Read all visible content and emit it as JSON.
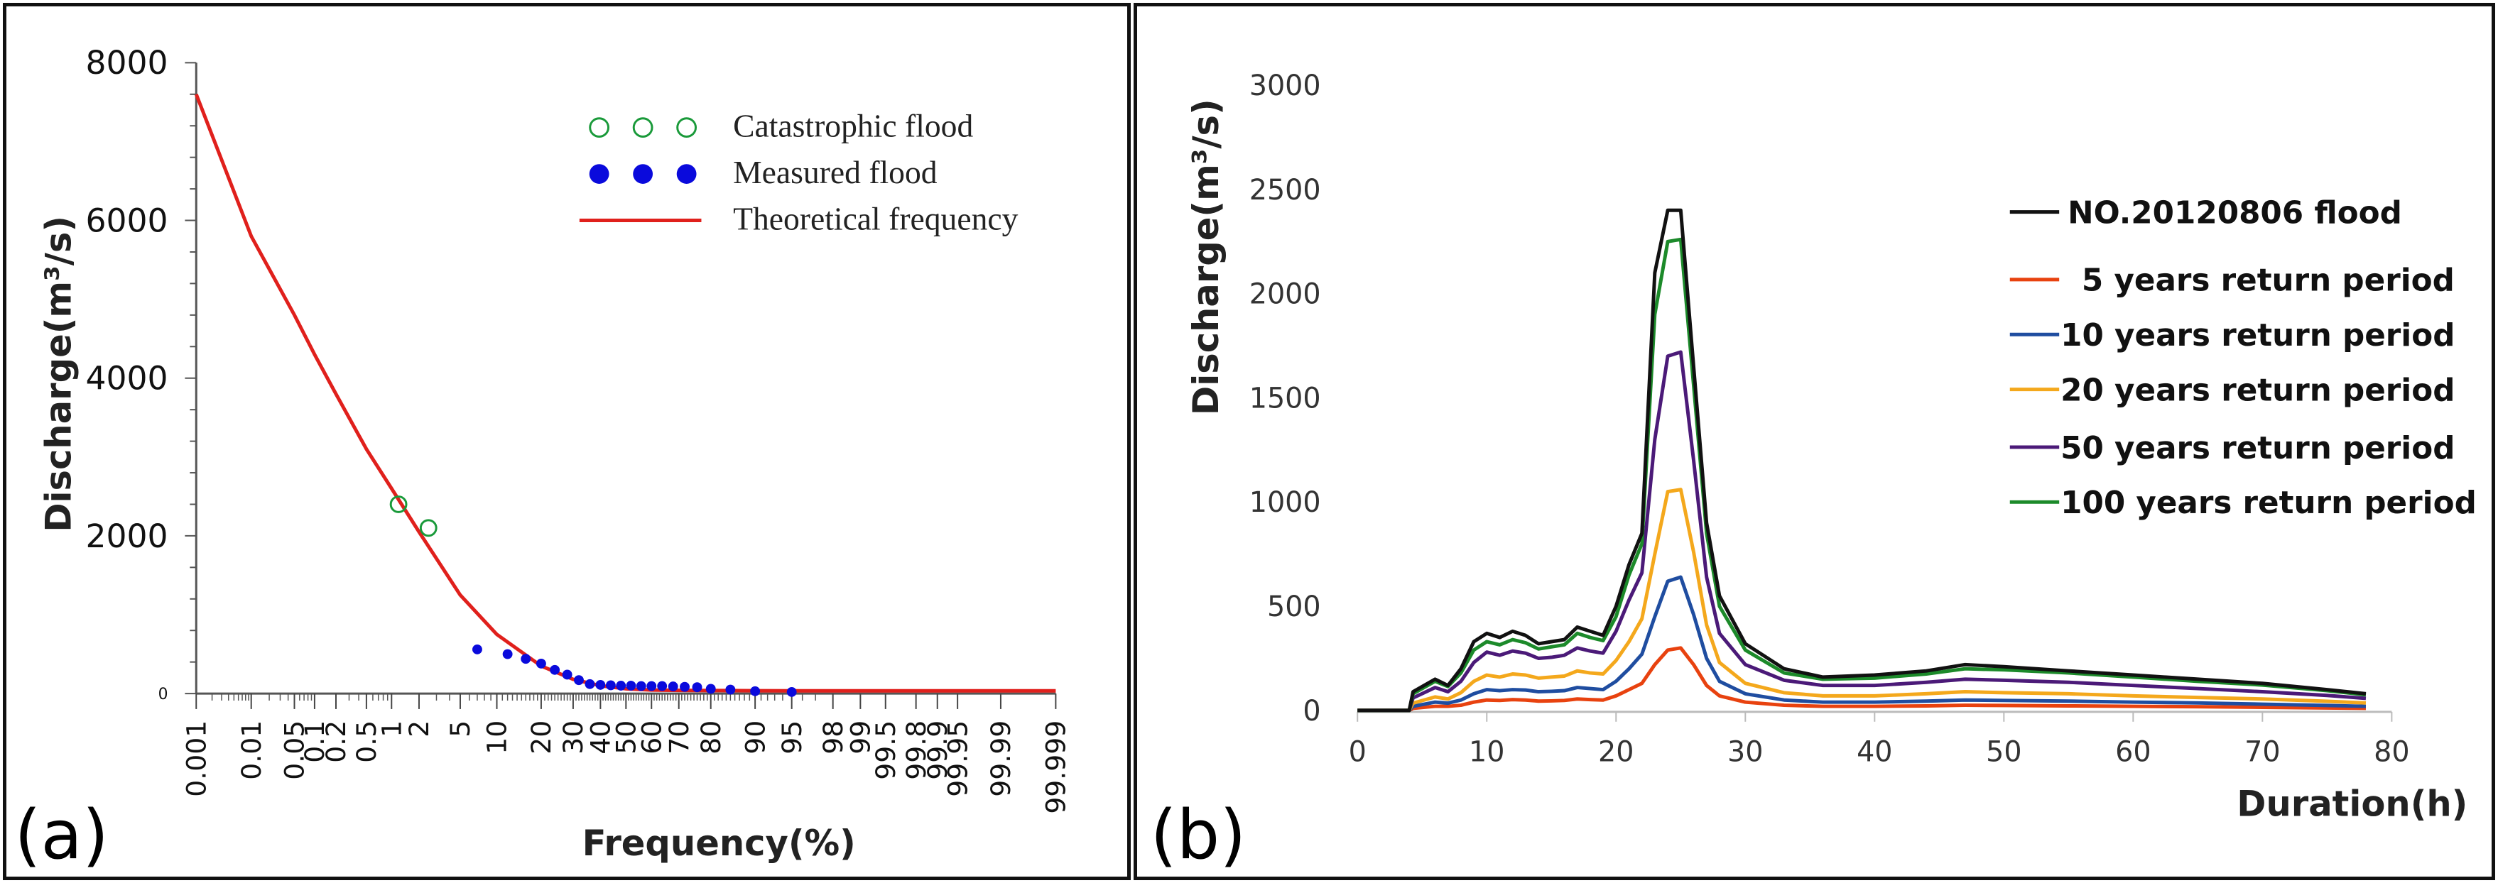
{
  "chart_data": [
    {
      "panel_label": "(a)",
      "type": "scatter",
      "title": "",
      "xlabel": "Frequency(%)",
      "ylabel": "Discharge(m³/s)",
      "x_scale": "probability",
      "ylim": [
        0,
        8000
      ],
      "y_ticks": [
        "0",
        "2000",
        "4000",
        "6000",
        "8000"
      ],
      "x_tick_labels": [
        "0.001",
        "0.01",
        "0.05",
        "0.1",
        "0.2",
        "0.5",
        "1",
        "2",
        "5",
        "10",
        "20",
        "30",
        "40",
        "50",
        "60",
        "70",
        "80",
        "90",
        "95",
        "98",
        "99",
        "99.5",
        "99.8",
        "99.9",
        "99.95",
        "99.99",
        "99.999"
      ],
      "legend": [
        {
          "label": "Catastrophic flood",
          "marker": "open-circle",
          "color": "#1a9a3a"
        },
        {
          "label": "Measured flood",
          "marker": "filled-circle",
          "color": "#0a0adc"
        },
        {
          "label": "Theoretical frequency",
          "marker": "line",
          "color": "#e0201c"
        }
      ],
      "series": [
        {
          "name": "Catastrophic flood",
          "x": [
            1.2,
            2.5
          ],
          "y": [
            2400,
            2100
          ]
        },
        {
          "name": "Measured flood",
          "x": [
            7,
            12,
            16,
            20,
            24,
            28,
            32,
            36,
            40,
            44,
            48,
            52,
            56,
            60,
            64,
            68,
            72,
            76,
            80,
            85,
            90,
            95
          ],
          "y": [
            560,
            500,
            440,
            380,
            300,
            240,
            170,
            120,
            110,
            105,
            100,
            100,
            95,
            95,
            95,
            90,
            85,
            80,
            60,
            50,
            30,
            20
          ]
        },
        {
          "name": "Theoretical frequency",
          "x": [
            0.001,
            0.01,
            0.05,
            0.1,
            0.2,
            0.5,
            1,
            2,
            5,
            10,
            20,
            30,
            40,
            50,
            60,
            70,
            80,
            90,
            95,
            98,
            99,
            99.5,
            99.8,
            99.9,
            99.95,
            99.99,
            99.999
          ],
          "y": [
            7600,
            5800,
            4800,
            4300,
            3800,
            3100,
            2600,
            2050,
            1250,
            750,
            350,
            180,
            100,
            60,
            45,
            40,
            38,
            36,
            35,
            35,
            35,
            35,
            35,
            35,
            35,
            35,
            35
          ]
        }
      ]
    },
    {
      "panel_label": "(b)",
      "type": "line",
      "title": "",
      "xlabel": "Duration(h)",
      "ylabel": "Discharge(m³/s)",
      "xlim": [
        0,
        80
      ],
      "ylim": [
        0,
        3000
      ],
      "x_ticks": [
        "0",
        "10",
        "20",
        "30",
        "40",
        "50",
        "60",
        "70",
        "80"
      ],
      "y_ticks": [
        "0",
        "500",
        "1000",
        "1500",
        "2000",
        "2500",
        "3000"
      ],
      "legend_position": "right",
      "x": [
        0,
        4,
        4.3,
        6,
        7,
        8,
        9,
        10,
        11,
        12,
        13,
        14,
        15,
        16,
        17,
        18,
        19,
        20,
        21,
        22,
        23,
        24,
        25,
        26,
        27,
        28,
        30,
        33,
        36,
        40,
        44,
        47,
        50,
        55,
        60,
        65,
        70,
        75,
        78
      ],
      "series": [
        {
          "name": "NO.20120806 flood",
          "color": "#111111",
          "values": [
            0,
            0,
            90,
            150,
            120,
            200,
            330,
            370,
            350,
            380,
            360,
            320,
            330,
            340,
            400,
            380,
            360,
            500,
            700,
            850,
            2100,
            2400,
            2400,
            1650,
            900,
            550,
            320,
            200,
            160,
            170,
            190,
            220,
            210,
            190,
            170,
            150,
            130,
            100,
            80
          ]
        },
        {
          "name": "5 years return period",
          "color": "#e8420f",
          "values": [
            0,
            0,
            10,
            20,
            20,
            25,
            40,
            50,
            48,
            52,
            50,
            45,
            46,
            48,
            55,
            52,
            50,
            70,
            100,
            130,
            220,
            290,
            300,
            220,
            120,
            70,
            40,
            25,
            20,
            20,
            22,
            25,
            24,
            22,
            20,
            18,
            15,
            12,
            10
          ]
        },
        {
          "name": "10 years return period",
          "color": "#1f4da0",
          "values": [
            0,
            0,
            20,
            40,
            35,
            50,
            80,
            100,
            95,
            100,
            98,
            90,
            92,
            95,
            110,
            105,
            100,
            140,
            200,
            270,
            450,
            620,
            640,
            460,
            250,
            140,
            80,
            50,
            40,
            40,
            45,
            50,
            48,
            45,
            40,
            36,
            30,
            24,
            20
          ]
        },
        {
          "name": "20 years return period",
          "color": "#f4a81c",
          "values": [
            0,
            0,
            35,
            65,
            55,
            85,
            140,
            170,
            160,
            175,
            170,
            155,
            160,
            165,
            190,
            180,
            175,
            240,
            330,
            440,
            750,
            1050,
            1060,
            760,
            410,
            230,
            130,
            85,
            70,
            70,
            80,
            90,
            85,
            80,
            70,
            62,
            55,
            44,
            36
          ]
        },
        {
          "name": "50 years return period",
          "color": "#4b1a78",
          "values": [
            0,
            0,
            60,
            110,
            90,
            140,
            230,
            280,
            265,
            285,
            275,
            250,
            255,
            265,
            300,
            285,
            275,
            380,
            530,
            660,
            1300,
            1700,
            1720,
            1200,
            640,
            370,
            220,
            145,
            120,
            120,
            135,
            150,
            145,
            135,
            120,
            105,
            90,
            72,
            58
          ]
        },
        {
          "name": "100 years return period",
          "color": "#1c8a2a",
          "values": [
            0,
            0,
            80,
            140,
            115,
            180,
            290,
            330,
            315,
            340,
            325,
            295,
            305,
            315,
            370,
            350,
            335,
            450,
            650,
            800,
            1900,
            2250,
            2260,
            1560,
            850,
            500,
            290,
            180,
            150,
            155,
            175,
            200,
            195,
            180,
            160,
            140,
            122,
            95,
            75
          ]
        }
      ]
    }
  ]
}
